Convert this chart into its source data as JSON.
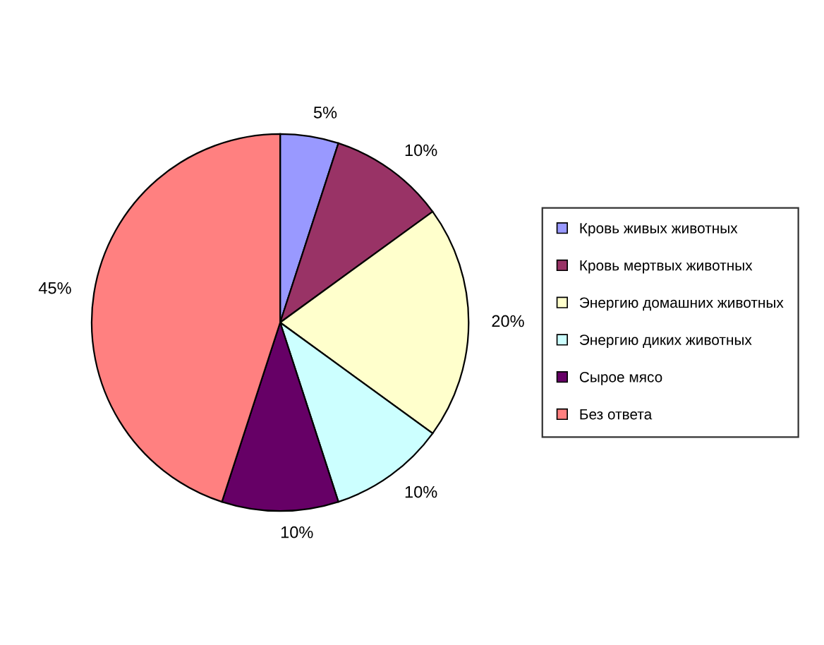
{
  "chart_data": {
    "type": "pie",
    "categories": [
      "Кровь живых животных",
      "Кровь мертвых животных",
      "Энергию домашних животных",
      "Энергию диких животных",
      "Сырое мясо",
      "Без ответа"
    ],
    "values": [
      5,
      10,
      20,
      10,
      10,
      45
    ],
    "colors": [
      "#9999ff",
      "#993366",
      "#ffffcc",
      "#ccffff",
      "#660066",
      "#ff8080"
    ],
    "value_labels": [
      "5%",
      "10%",
      "20%",
      "10%",
      "10%",
      "45%"
    ],
    "legend": "right"
  }
}
